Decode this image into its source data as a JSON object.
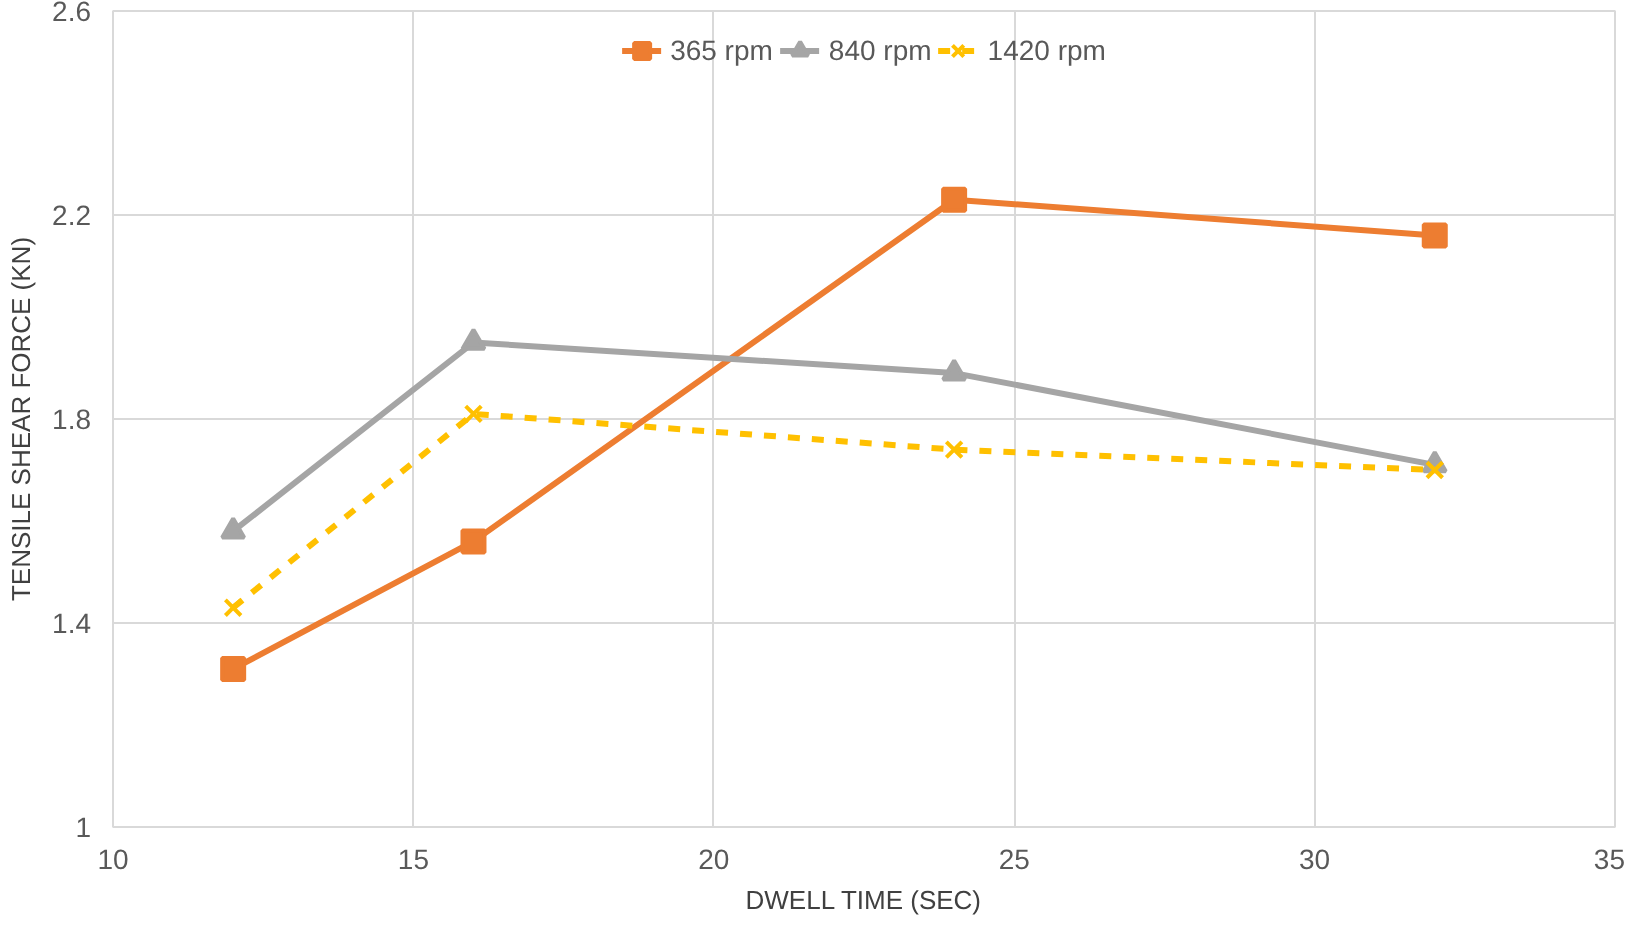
{
  "chart_data": {
    "type": "line",
    "xlabel": "DWELL TIME (SEC)",
    "ylabel": "TENSILE SHEAR FORCE (KN)",
    "xlim": [
      10,
      35
    ],
    "xticks": [
      10,
      15,
      20,
      25,
      30,
      35
    ],
    "ylim": [
      1,
      2.6
    ],
    "yticks": [
      1,
      1.4,
      1.8,
      2.2,
      2.6
    ],
    "grid": true,
    "legend": "top",
    "x": [
      12,
      16,
      24,
      32
    ],
    "series": [
      {
        "name": "365 rpm",
        "color": "#ed7d31",
        "marker": "square",
        "line_style": "solid",
        "values": [
          1.31,
          1.56,
          2.23,
          2.16
        ]
      },
      {
        "name": "840 rpm",
        "color": "#a5a5a5",
        "marker": "triangle",
        "line_style": "solid",
        "values": [
          1.58,
          1.95,
          1.89,
          1.71
        ]
      },
      {
        "name": "1420 rpm",
        "color": "#ffc000",
        "marker": "cross",
        "line_style": "dashed",
        "values": [
          1.43,
          1.81,
          1.74,
          1.7
        ]
      }
    ]
  }
}
